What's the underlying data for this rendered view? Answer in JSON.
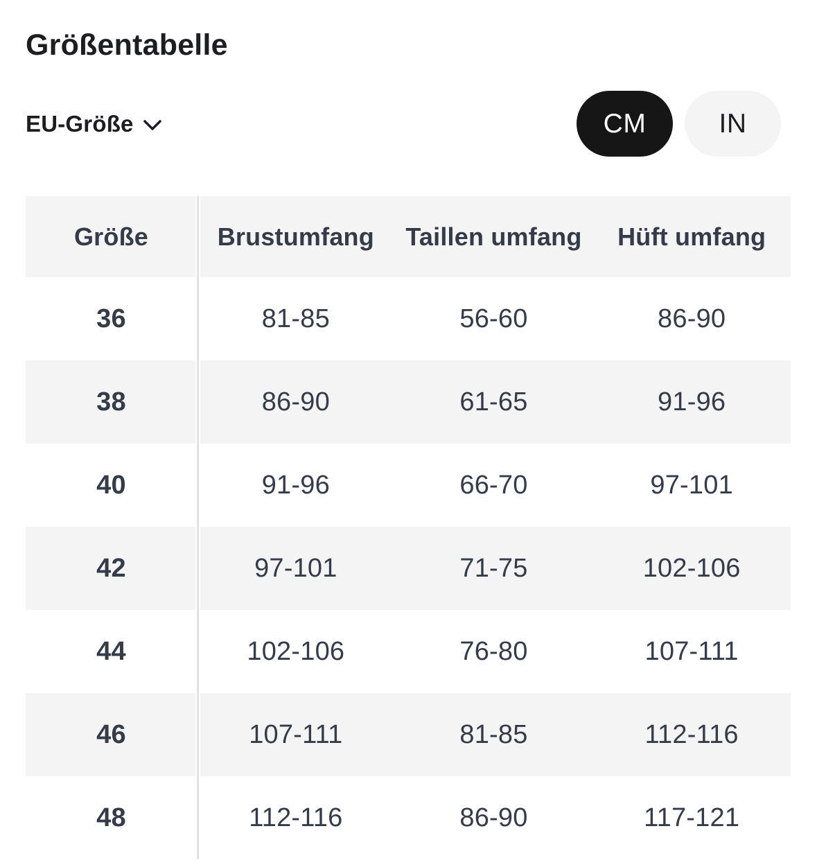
{
  "page": {
    "title": "Größentabelle"
  },
  "size_standard": {
    "label": "EU-Größe",
    "state": "collapsed"
  },
  "unit_toggle": {
    "selected": "CM",
    "options": [
      {
        "label": "CM"
      },
      {
        "label": "IN"
      }
    ]
  },
  "table": {
    "columns": [
      "Größe",
      "Brustumfang",
      "Taillen umfang",
      "Hüft umfang"
    ],
    "rows": [
      {
        "size": "36",
        "values": [
          "81-85",
          "56-60",
          "86-90"
        ]
      },
      {
        "size": "38",
        "values": [
          "86-90",
          "61-65",
          "91-96"
        ]
      },
      {
        "size": "40",
        "values": [
          "91-96",
          "66-70",
          "97-101"
        ]
      },
      {
        "size": "42",
        "values": [
          "97-101",
          "71-75",
          "102-106"
        ]
      },
      {
        "size": "44",
        "values": [
          "102-106",
          "76-80",
          "107-111"
        ]
      },
      {
        "size": "46",
        "values": [
          "107-111",
          "81-85",
          "112-116"
        ]
      },
      {
        "size": "48",
        "values": [
          "112-116",
          "86-90",
          "117-121"
        ]
      }
    ]
  },
  "colors": {
    "selected_pill_bg": "#161616",
    "selected_pill_text": "#ffffff",
    "row_alt_bg": "#f4f4f4",
    "table_text": "#353b48",
    "title_text": "#1d1e20"
  }
}
